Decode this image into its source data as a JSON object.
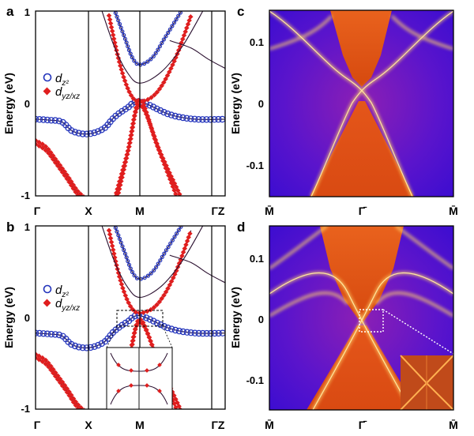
{
  "chart_data": [
    {
      "panel": "a",
      "type": "line",
      "ylabel": "Energy (eV)",
      "ylim": [
        -1,
        1
      ],
      "yticks": [
        "1",
        "0",
        "-1"
      ],
      "kpoints": [
        "Γ",
        "X",
        "M",
        "ΓZ"
      ],
      "legend": [
        {
          "label": "d",
          "sub": "z²",
          "color": "#2233bb",
          "marker": "open-circle"
        },
        {
          "label": "d",
          "sub": "yz/xz",
          "color": "#e01e1e",
          "marker": "diamond"
        }
      ],
      "bands": [
        {
          "name": "flat-dz2",
          "color": "#2233bb",
          "x": [
            0,
            0.25,
            0.5,
            0.7,
            1,
            1.3,
            1.5,
            1.75,
            2,
            2.35,
            2.65,
            3
          ],
          "y": [
            -0.17,
            -0.18,
            -0.2,
            -0.3,
            -0.33,
            -0.27,
            -0.15,
            -0.05,
            0.02,
            -0.12,
            -0.17,
            -0.17
          ]
        },
        {
          "name": "hole-upper",
          "color": "#e01e1e",
          "x": [
            0,
            0.2,
            0.4,
            0.6,
            0.8,
            1
          ],
          "y": [
            -0.4,
            -0.47,
            -0.62,
            -0.78,
            -0.95,
            -1.05
          ]
        },
        {
          "name": "hole-lower",
          "color": "#e01e1e",
          "x": [
            0,
            0.2,
            0.4,
            0.6,
            0.8,
            1
          ],
          "y": [
            -0.44,
            -0.51,
            -0.66,
            -0.82,
            -0.99,
            -1.09
          ]
        },
        {
          "name": "electron-1",
          "color": "#e01e1e",
          "x": [
            1.4,
            1.6,
            1.8,
            2,
            2.2,
            2.4,
            2.6
          ],
          "y": [
            0.95,
            0.45,
            0.12,
            0.02,
            0.12,
            0.45,
            0.95
          ]
        },
        {
          "name": "electron-2",
          "color": "#2233bb",
          "x": [
            1.5,
            1.7,
            1.85,
            2,
            2.15,
            2.3,
            2.5
          ],
          "y": [
            1.02,
            0.72,
            0.5,
            0.42,
            0.5,
            0.72,
            1.02
          ]
        },
        {
          "name": "electron-3",
          "color": "#111111",
          "x": [
            1.25,
            1.5,
            1.75,
            2,
            2.25,
            2.5,
            2.75
          ],
          "y": [
            1.02,
            0.62,
            0.34,
            0.22,
            0.34,
            0.62,
            1.02
          ]
        },
        {
          "name": "hole-M-1",
          "color": "#e01e1e",
          "x": [
            1.5,
            1.75,
            2,
            2.25,
            2.5
          ],
          "y": [
            -1.05,
            -0.55,
            -0.02,
            -0.55,
            -1.05
          ]
        },
        {
          "name": "hole-M-2",
          "color": "#e01e1e",
          "x": [
            1.55,
            1.8,
            2,
            2.2,
            2.45
          ],
          "y": [
            -1.05,
            -0.45,
            0.04,
            -0.45,
            -1.05
          ]
        },
        {
          "name": "top-right",
          "color": "#111111",
          "x": [
            2.35,
            2.6,
            2.8,
            3
          ],
          "y": [
            0.68,
            0.6,
            0.48,
            0.38
          ]
        }
      ]
    },
    {
      "panel": "b",
      "type": "line",
      "ylabel": "Energy (eV)",
      "ylim": [
        -1,
        1
      ],
      "yticks": [
        "1",
        "0",
        "-1"
      ],
      "kpoints": [
        "Γ",
        "X",
        "M",
        "ΓZ"
      ],
      "legend": [
        {
          "label": "d",
          "sub": "z²",
          "color": "#2233bb",
          "marker": "open-circle"
        },
        {
          "label": "d",
          "sub": "yz/xz",
          "color": "#e01e1e",
          "marker": "diamond"
        }
      ],
      "bands": [
        {
          "name": "flat-dz2",
          "color": "#2233bb",
          "x": [
            0,
            0.25,
            0.5,
            0.7,
            1,
            1.3,
            1.5,
            1.75,
            2,
            2.35,
            2.65,
            3
          ],
          "y": [
            -0.17,
            -0.18,
            -0.2,
            -0.3,
            -0.33,
            -0.27,
            -0.15,
            -0.05,
            0.02,
            -0.12,
            -0.17,
            -0.17
          ]
        },
        {
          "name": "hole-upper",
          "color": "#e01e1e",
          "x": [
            0,
            0.2,
            0.4,
            0.6,
            0.8,
            1
          ],
          "y": [
            -0.4,
            -0.47,
            -0.62,
            -0.78,
            -0.95,
            -1.05
          ]
        },
        {
          "name": "hole-lower",
          "color": "#e01e1e",
          "x": [
            0,
            0.2,
            0.4,
            0.6,
            0.8,
            1
          ],
          "y": [
            -0.44,
            -0.51,
            -0.66,
            -0.82,
            -0.99,
            -1.09
          ]
        },
        {
          "name": "electron-1",
          "color": "#e01e1e",
          "x": [
            1.4,
            1.6,
            1.8,
            2,
            2.2,
            2.4,
            2.6
          ],
          "y": [
            0.95,
            0.45,
            0.14,
            0.05,
            0.14,
            0.45,
            0.95
          ]
        },
        {
          "name": "electron-2",
          "color": "#2233bb",
          "x": [
            1.5,
            1.7,
            1.85,
            2,
            2.15,
            2.3,
            2.5
          ],
          "y": [
            1.02,
            0.72,
            0.5,
            0.42,
            0.5,
            0.72,
            1.02
          ]
        },
        {
          "name": "electron-3",
          "color": "#111111",
          "x": [
            1.25,
            1.5,
            1.75,
            2,
            2.25,
            2.5,
            2.75
          ],
          "y": [
            1.02,
            0.62,
            0.34,
            0.22,
            0.34,
            0.62,
            1.02
          ]
        },
        {
          "name": "hole-M-1",
          "color": "#e01e1e",
          "x": [
            1.5,
            1.75,
            2,
            2.25,
            2.5
          ],
          "y": [
            -1.05,
            -0.55,
            -0.05,
            -0.55,
            -1.05
          ]
        },
        {
          "name": "hole-M-2",
          "color": "#e01e1e",
          "x": [
            1.55,
            1.8,
            2,
            2.2,
            2.45
          ],
          "y": [
            -1.05,
            -0.45,
            -0.02,
            -0.45,
            -1.05
          ]
        },
        {
          "name": "top-right",
          "color": "#111111",
          "x": [
            2.35,
            2.6,
            2.8,
            3
          ],
          "y": [
            0.68,
            0.6,
            0.48,
            0.38
          ]
        }
      ]
    },
    {
      "panel": "c",
      "type": "heatmap",
      "ylabel": "Energy (eV)",
      "ylim": [
        -0.15,
        0.15
      ],
      "yticks": [
        "0.1",
        "0",
        "-0.1"
      ],
      "kpoints": [
        "M̄",
        "Γ̄",
        "M̄"
      ],
      "colormap": [
        "#4a10c8",
        "#8a1fb0",
        "#e05010",
        "#ff9a20",
        "#ffe080"
      ]
    },
    {
      "panel": "d",
      "type": "heatmap",
      "ylabel": "Energy (eV)",
      "ylim": [
        -0.15,
        0.15
      ],
      "yticks": [
        "0.1",
        "0",
        "-0.1"
      ],
      "kpoints": [
        "M̄",
        "Γ̄",
        "M̄"
      ],
      "colormap": [
        "#4a10c8",
        "#8a1fb0",
        "#e05010",
        "#ff9a20",
        "#ffe080"
      ]
    }
  ]
}
